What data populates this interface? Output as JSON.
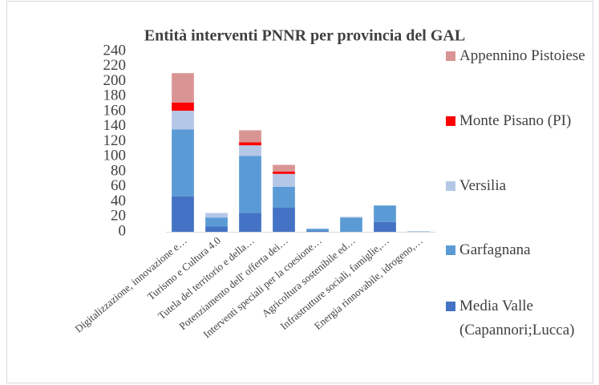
{
  "chart_data": {
    "type": "stacked_bar",
    "title": "Entità interventi PNNR per provincia del GAL",
    "categories": [
      "Digitalizzazione, innovazione e…",
      "Turismo e Cultura 4.0",
      "Tutela del territorio e della…",
      "Potenziamento dell' offerta dei…",
      "Interventi speciali per la coesione…",
      "Agricoltura sostenibile ed…",
      "Infrastrutture sociali, famiglie,…",
      "Energia rinnovabile, idrogeno,…"
    ],
    "series": [
      {
        "name": "Media Valle (Capannori;Lucca)",
        "color": "#4472c4",
        "values": [
          47,
          7,
          25,
          32,
          1,
          0,
          13,
          0
        ]
      },
      {
        "name": "Garfagnana",
        "color": "#5b9bd5",
        "values": [
          89,
          12,
          76,
          28,
          3,
          19,
          22,
          0
        ]
      },
      {
        "name": "Versilia",
        "color": "#b4c7e7",
        "values": [
          25,
          6,
          14,
          17,
          0,
          1,
          0,
          1
        ]
      },
      {
        "name": "Monte Pisano (PI)",
        "color": "#ff0000",
        "values": [
          11,
          0,
          4,
          3,
          0,
          0,
          0,
          0
        ]
      },
      {
        "name": "Appennino Pistoiese",
        "color": "#d99594",
        "values": [
          39,
          0,
          16,
          9,
          0,
          0,
          0,
          0
        ]
      }
    ],
    "ylim": [
      0,
      240
    ],
    "yticks": [
      0,
      20,
      40,
      60,
      80,
      100,
      120,
      140,
      160,
      180,
      200,
      220,
      240
    ],
    "legend": "right"
  }
}
